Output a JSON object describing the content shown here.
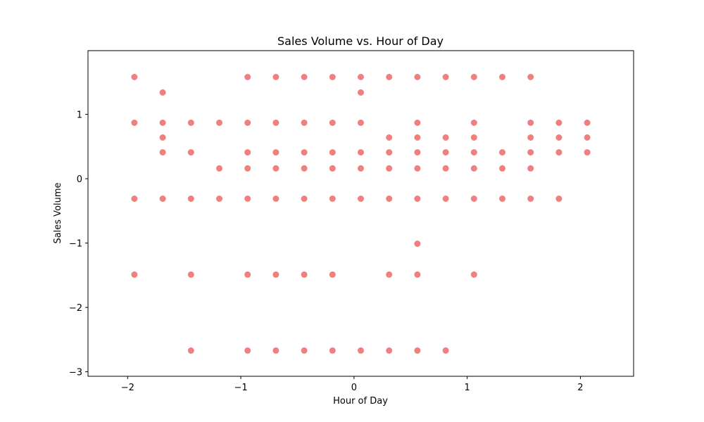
{
  "chart_data": {
    "type": "scatter",
    "title": "Sales Volume vs. Hour of Day",
    "xlabel": "Hour of Day",
    "ylabel": "Sales Volume",
    "xlim": [
      -2.35,
      2.47
    ],
    "ylim": [
      -3.07,
      1.99
    ],
    "xticks": [
      -2,
      -1,
      0,
      1,
      2
    ],
    "yticks": [
      -3,
      -2,
      -1,
      0,
      1
    ],
    "xtick_labels": [
      "−2",
      "−1",
      "0",
      "1",
      "2"
    ],
    "ytick_labels": [
      "−3",
      "−2",
      "−1",
      "0",
      "1"
    ],
    "grid": false,
    "marker_color": "#f08080",
    "points": [
      [
        -1.94,
        1.58
      ],
      [
        -1.94,
        0.87
      ],
      [
        -1.94,
        -0.31
      ],
      [
        -1.94,
        -1.49
      ],
      [
        -1.69,
        1.34
      ],
      [
        -1.69,
        0.87
      ],
      [
        -1.69,
        0.64
      ],
      [
        -1.69,
        0.41
      ],
      [
        -1.69,
        -0.31
      ],
      [
        -1.44,
        0.87
      ],
      [
        -1.44,
        0.41
      ],
      [
        -1.44,
        -0.31
      ],
      [
        -1.44,
        -1.49
      ],
      [
        -1.44,
        -2.67
      ],
      [
        -1.19,
        0.87
      ],
      [
        -1.19,
        0.16
      ],
      [
        -1.19,
        -0.31
      ],
      [
        -0.94,
        1.58
      ],
      [
        -0.94,
        0.87
      ],
      [
        -0.94,
        0.41
      ],
      [
        -0.94,
        0.16
      ],
      [
        -0.94,
        -0.31
      ],
      [
        -0.94,
        -1.49
      ],
      [
        -0.94,
        -2.67
      ],
      [
        -0.69,
        1.58
      ],
      [
        -0.69,
        0.87
      ],
      [
        -0.69,
        0.41
      ],
      [
        -0.69,
        0.16
      ],
      [
        -0.69,
        -0.31
      ],
      [
        -0.69,
        -1.49
      ],
      [
        -0.69,
        -2.67
      ],
      [
        -0.44,
        1.58
      ],
      [
        -0.44,
        0.87
      ],
      [
        -0.44,
        0.41
      ],
      [
        -0.44,
        0.16
      ],
      [
        -0.44,
        -0.31
      ],
      [
        -0.44,
        -1.49
      ],
      [
        -0.44,
        -2.67
      ],
      [
        -0.19,
        1.58
      ],
      [
        -0.19,
        0.87
      ],
      [
        -0.19,
        0.41
      ],
      [
        -0.19,
        0.16
      ],
      [
        -0.19,
        -0.31
      ],
      [
        -0.19,
        -1.49
      ],
      [
        -0.19,
        -2.67
      ],
      [
        0.06,
        1.58
      ],
      [
        0.06,
        1.34
      ],
      [
        0.06,
        0.87
      ],
      [
        0.06,
        0.41
      ],
      [
        0.06,
        0.16
      ],
      [
        0.06,
        -0.31
      ],
      [
        0.06,
        -2.67
      ],
      [
        0.31,
        1.58
      ],
      [
        0.31,
        0.64
      ],
      [
        0.31,
        0.41
      ],
      [
        0.31,
        0.16
      ],
      [
        0.31,
        -0.31
      ],
      [
        0.31,
        -1.49
      ],
      [
        0.31,
        -2.67
      ],
      [
        0.56,
        1.58
      ],
      [
        0.56,
        0.87
      ],
      [
        0.56,
        0.64
      ],
      [
        0.56,
        0.41
      ],
      [
        0.56,
        0.16
      ],
      [
        0.56,
        -0.31
      ],
      [
        0.56,
        -1.01
      ],
      [
        0.56,
        -1.49
      ],
      [
        0.56,
        -2.67
      ],
      [
        0.81,
        1.58
      ],
      [
        0.81,
        0.64
      ],
      [
        0.81,
        0.41
      ],
      [
        0.81,
        0.16
      ],
      [
        0.81,
        -0.31
      ],
      [
        0.81,
        -2.67
      ],
      [
        1.06,
        1.58
      ],
      [
        1.06,
        0.87
      ],
      [
        1.06,
        0.64
      ],
      [
        1.06,
        0.41
      ],
      [
        1.06,
        0.16
      ],
      [
        1.06,
        -0.31
      ],
      [
        1.06,
        -1.49
      ],
      [
        1.31,
        1.58
      ],
      [
        1.31,
        0.41
      ],
      [
        1.31,
        0.16
      ],
      [
        1.31,
        -0.31
      ],
      [
        1.56,
        1.58
      ],
      [
        1.56,
        0.87
      ],
      [
        1.56,
        0.64
      ],
      [
        1.56,
        0.41
      ],
      [
        1.56,
        0.16
      ],
      [
        1.56,
        -0.31
      ],
      [
        1.81,
        0.87
      ],
      [
        1.81,
        0.64
      ],
      [
        1.81,
        0.41
      ],
      [
        1.81,
        -0.31
      ],
      [
        2.06,
        0.87
      ],
      [
        2.06,
        0.64
      ],
      [
        2.06,
        0.41
      ]
    ]
  }
}
